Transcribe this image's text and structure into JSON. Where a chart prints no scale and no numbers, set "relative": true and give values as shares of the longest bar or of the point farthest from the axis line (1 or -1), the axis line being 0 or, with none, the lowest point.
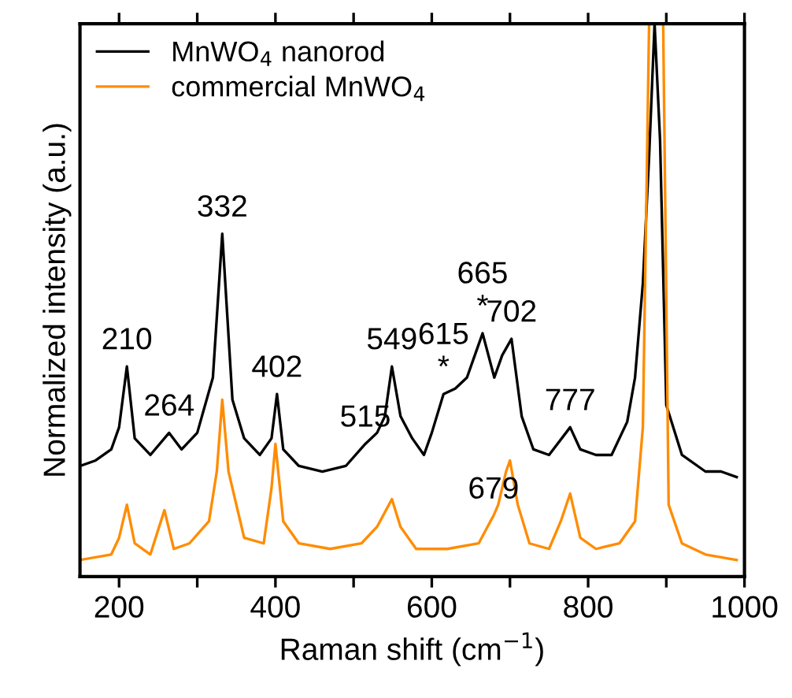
{
  "chart_data": {
    "type": "line",
    "xlabel": "Raman shift (cm$^{−1}$)",
    "ylabel": "Normalized intensity (a.u.)",
    "relative": true,
    "xlim": [
      150,
      1000
    ],
    "xticks": [
      200,
      {
        "value": 300,
        "label": null
      },
      400,
      {
        "value": 500,
        "label": null
      },
      600,
      {
        "value": 700,
        "label": null
      },
      800,
      {
        "value": 900,
        "label": null
      },
      1000
    ],
    "legend": "top left",
    "grid": false,
    "line_style": "solid",
    "marker": "none",
    "series": [
      {
        "name": "MnWO$_{4}$ nanorod",
        "color": "#000000",
        "x": [
          150,
          170,
          190,
          200,
          210,
          220,
          240,
          264,
          280,
          300,
          320,
          332,
          345,
          360,
          380,
          395,
          402,
          410,
          430,
          460,
          490,
          515,
          530,
          540,
          549,
          560,
          575,
          590,
          600,
          615,
          630,
          645,
          655,
          665,
          680,
          690,
          702,
          715,
          730,
          750,
          777,
          790,
          810,
          830,
          850,
          860,
          870,
          878,
          885,
          892,
          900,
          920,
          950,
          970,
          990
        ],
        "values": [
          0.2,
          0.21,
          0.23,
          0.27,
          0.38,
          0.25,
          0.22,
          0.26,
          0.23,
          0.26,
          0.36,
          0.62,
          0.32,
          0.25,
          0.22,
          0.25,
          0.33,
          0.23,
          0.2,
          0.19,
          0.2,
          0.24,
          0.26,
          0.29,
          0.38,
          0.29,
          0.25,
          0.22,
          0.26,
          0.33,
          0.34,
          0.36,
          0.4,
          0.44,
          0.36,
          0.4,
          0.43,
          0.29,
          0.23,
          0.22,
          0.27,
          0.23,
          0.22,
          0.22,
          0.28,
          0.36,
          0.53,
          0.76,
          1.0,
          0.79,
          0.31,
          0.22,
          0.19,
          0.19,
          0.18
        ]
      },
      {
        "name": "commercial MnWO$_{4}$",
        "color": "#ff8c00",
        "x": [
          150,
          190,
          200,
          210,
          220,
          240,
          258,
          270,
          290,
          315,
          325,
          332,
          340,
          360,
          385,
          395,
          400,
          410,
          430,
          470,
          510,
          530,
          549,
          560,
          580,
          620,
          660,
          675,
          679,
          685,
          695,
          700,
          710,
          725,
          750,
          765,
          777,
          790,
          810,
          840,
          860,
          870,
          878,
          896,
          903,
          920,
          950,
          990
        ],
        "values": [
          0.03,
          0.04,
          0.07,
          0.13,
          0.06,
          0.04,
          0.12,
          0.05,
          0.06,
          0.1,
          0.19,
          0.32,
          0.19,
          0.07,
          0.06,
          0.16,
          0.24,
          0.1,
          0.06,
          0.05,
          0.06,
          0.09,
          0.14,
          0.09,
          0.05,
          0.05,
          0.06,
          0.1,
          0.11,
          0.13,
          0.19,
          0.21,
          0.13,
          0.06,
          0.05,
          0.1,
          0.15,
          0.07,
          0.05,
          0.06,
          0.1,
          0.27,
          1.0,
          1.0,
          0.13,
          0.06,
          0.04,
          0.03
        ]
      }
    ],
    "annotations": [
      {
        "text": "210",
        "x": 210,
        "y": 0.38
      },
      {
        "text": "264",
        "x": 264,
        "y": 0.26
      },
      {
        "text": "332",
        "x": 332,
        "y": 0.62
      },
      {
        "text": "402",
        "x": 402,
        "y": 0.33
      },
      {
        "text": "515",
        "x": 515,
        "y": 0.24
      },
      {
        "text": "549",
        "x": 549,
        "y": 0.38
      },
      {
        "text": "*",
        "x": 615,
        "y": 0.33
      },
      {
        "text": "615",
        "x": 615,
        "y": 0.33
      },
      {
        "text": "*",
        "x": 665,
        "y": 0.44
      },
      {
        "text": "665",
        "x": 665,
        "y": 0.44
      },
      {
        "text": "702",
        "x": 702,
        "y": 0.43
      },
      {
        "text": "777",
        "x": 777,
        "y": 0.27
      },
      {
        "text": "679",
        "x": 679,
        "y": 0.11
      }
    ]
  }
}
